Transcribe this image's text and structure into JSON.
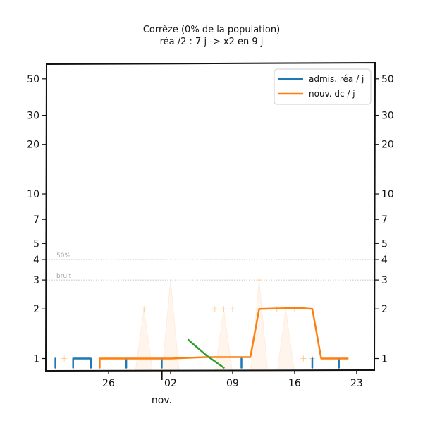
{
  "chart_data": {
    "type": "line",
    "title": "Corrèze (0% de la population)",
    "subtitle": "réa /2 : 7 j -> x2 en 9 j",
    "xlabel": "",
    "ylabel": "",
    "y_scale": "log",
    "ylim": [
      0.85,
      62
    ],
    "xlim": [
      "2020-10-19",
      "2020-11-25"
    ],
    "x_ticks": [
      {
        "date": "2020-10-26",
        "label": "26"
      },
      {
        "date": "2020-11-02",
        "label": "02"
      },
      {
        "date": "2020-11-09",
        "label": "09"
      },
      {
        "date": "2020-11-16",
        "label": "16"
      },
      {
        "date": "2020-11-23",
        "label": "23"
      }
    ],
    "x_month_label": {
      "date": "2020-11-01",
      "label": "nov."
    },
    "y_ticks": [
      1,
      2,
      3,
      4,
      5,
      7,
      10,
      20,
      30,
      50
    ],
    "reference_lines": [
      {
        "value": 4,
        "label": "50%"
      },
      {
        "value": 3,
        "label": "bruit"
      }
    ],
    "legend": {
      "position": "top-right",
      "entries": [
        {
          "label": "admis. réa / j",
          "color": "#1f77b4"
        },
        {
          "label": "nouv. dc / j",
          "color": "#ff7f0e"
        }
      ]
    },
    "grid": false,
    "series": [
      {
        "name": "admis. réa / j",
        "color": "#1f77b4",
        "segments": [
          [
            [
              "2020-10-20",
              0.88
            ],
            [
              "2020-10-20",
              1
            ]
          ],
          [
            [
              "2020-10-22",
              0.88
            ],
            [
              "2020-10-22",
              1
            ],
            [
              "2020-10-24",
              1
            ],
            [
              "2020-10-24",
              0.88
            ]
          ],
          [
            [
              "2020-10-28",
              0.88
            ],
            [
              "2020-10-28",
              1
            ]
          ],
          [
            [
              "2020-11-01",
              0.88
            ],
            [
              "2020-11-01",
              1
            ]
          ],
          [
            [
              "2020-11-10",
              1
            ],
            [
              "2020-11-10",
              0.88
            ]
          ],
          [
            [
              "2020-11-18",
              1
            ],
            [
              "2020-11-18",
              0.88
            ]
          ],
          [
            [
              "2020-11-21",
              0.88
            ],
            [
              "2020-11-21",
              1
            ]
          ]
        ]
      },
      {
        "name": "nouv. dc / j",
        "color": "#ff7f0e",
        "segments": [
          [
            [
              "2020-10-25",
              0.88
            ],
            [
              "2020-10-25",
              1
            ],
            [
              "2020-11-02",
              1
            ],
            [
              "2020-11-06",
              1.02
            ],
            [
              "2020-11-11",
              1.02
            ],
            [
              "2020-11-12",
              2
            ],
            [
              "2020-11-15",
              2.02
            ],
            [
              "2020-11-17",
              2.02
            ],
            [
              "2020-11-18",
              2
            ],
            [
              "2020-11-19",
              1
            ],
            [
              "2020-11-22",
              1
            ]
          ]
        ]
      },
      {
        "name": "",
        "color": "#2ca02c",
        "segments": [
          [
            [
              "2020-11-04",
              1.3
            ],
            [
              "2020-11-06",
              1.05
            ],
            [
              "2020-11-08",
              0.88
            ]
          ]
        ]
      }
    ],
    "daily_deaths_markers": [
      {
        "date": "2020-10-21",
        "value": 1
      },
      {
        "date": "2020-10-30",
        "value": 2
      },
      {
        "date": "2020-11-07",
        "value": 2
      },
      {
        "date": "2020-11-08",
        "value": 2
      },
      {
        "date": "2020-11-09",
        "value": 2
      },
      {
        "date": "2020-11-12",
        "value": 3
      },
      {
        "date": "2020-11-14",
        "value": 2
      },
      {
        "date": "2020-11-15",
        "value": 2
      },
      {
        "date": "2020-11-16",
        "value": 2
      },
      {
        "date": "2020-11-17",
        "value": 1
      },
      {
        "date": "2020-11-18",
        "value": 1
      }
    ],
    "shaded_peaks": [
      {
        "date": "2020-10-30",
        "value": 2
      },
      {
        "date": "2020-11-02",
        "value": 3
      },
      {
        "date": "2020-11-08",
        "value": 2
      },
      {
        "date": "2020-11-12",
        "value": 3
      },
      {
        "date": "2020-11-15",
        "value": 2
      }
    ]
  }
}
